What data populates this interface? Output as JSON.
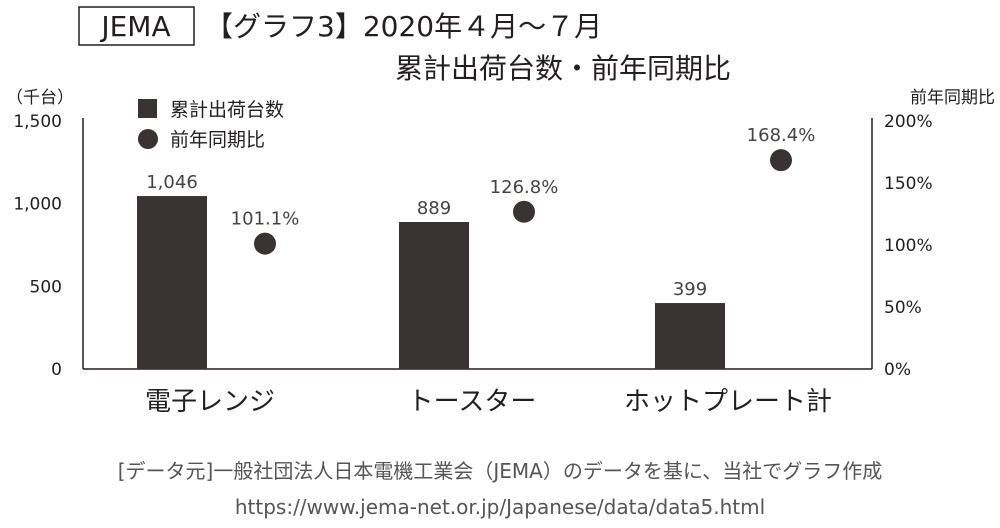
{
  "header": {
    "badge": "JEMA",
    "title_line1": "【グラフ3】2020年４月～７月",
    "title_line2": "累計出荷台数・前年同期比"
  },
  "source": {
    "line1": "[データ元]一般社団法人日本電機工業会（JEMA）のデータを基に、当社でグラフ作成",
    "line2": "https://www.jema-net.or.jp/Japanese/data/data5.html"
  },
  "colors": {
    "bar": "#3a3334",
    "dot": "#3a3334",
    "text": "#231f20"
  },
  "chart_data": {
    "type": "bar",
    "categories": [
      "電子レンジ",
      "トースター",
      "ホットプレート計"
    ],
    "series": [
      {
        "name": "累計出荷台数",
        "type": "bar",
        "axis": "left",
        "values": [
          1046,
          889,
          399
        ],
        "labels": [
          "1,046",
          "889",
          "399"
        ]
      },
      {
        "name": "前年同期比",
        "type": "scatter",
        "axis": "right",
        "values": [
          101.1,
          126.8,
          168.4
        ],
        "labels": [
          "101.1%",
          "126.8%",
          "168.4%"
        ]
      }
    ],
    "ylabel": "（千台）",
    "y2label": "前年同期比",
    "ylim": [
      0,
      1500
    ],
    "y2lim": [
      0,
      200
    ],
    "yticks": [
      {
        "value": 0,
        "label": "0"
      },
      {
        "value": 500,
        "label": "500"
      },
      {
        "value": 1000,
        "label": "1,000"
      },
      {
        "value": 1500,
        "label": "1,500"
      }
    ],
    "y2ticks": [
      {
        "value": 0,
        "label": "0%"
      },
      {
        "value": 50,
        "label": "50%"
      },
      {
        "value": 100,
        "label": "100%"
      },
      {
        "value": 150,
        "label": "150%"
      },
      {
        "value": 200,
        "label": "200%"
      }
    ],
    "legend": "top-left",
    "grid": false
  }
}
